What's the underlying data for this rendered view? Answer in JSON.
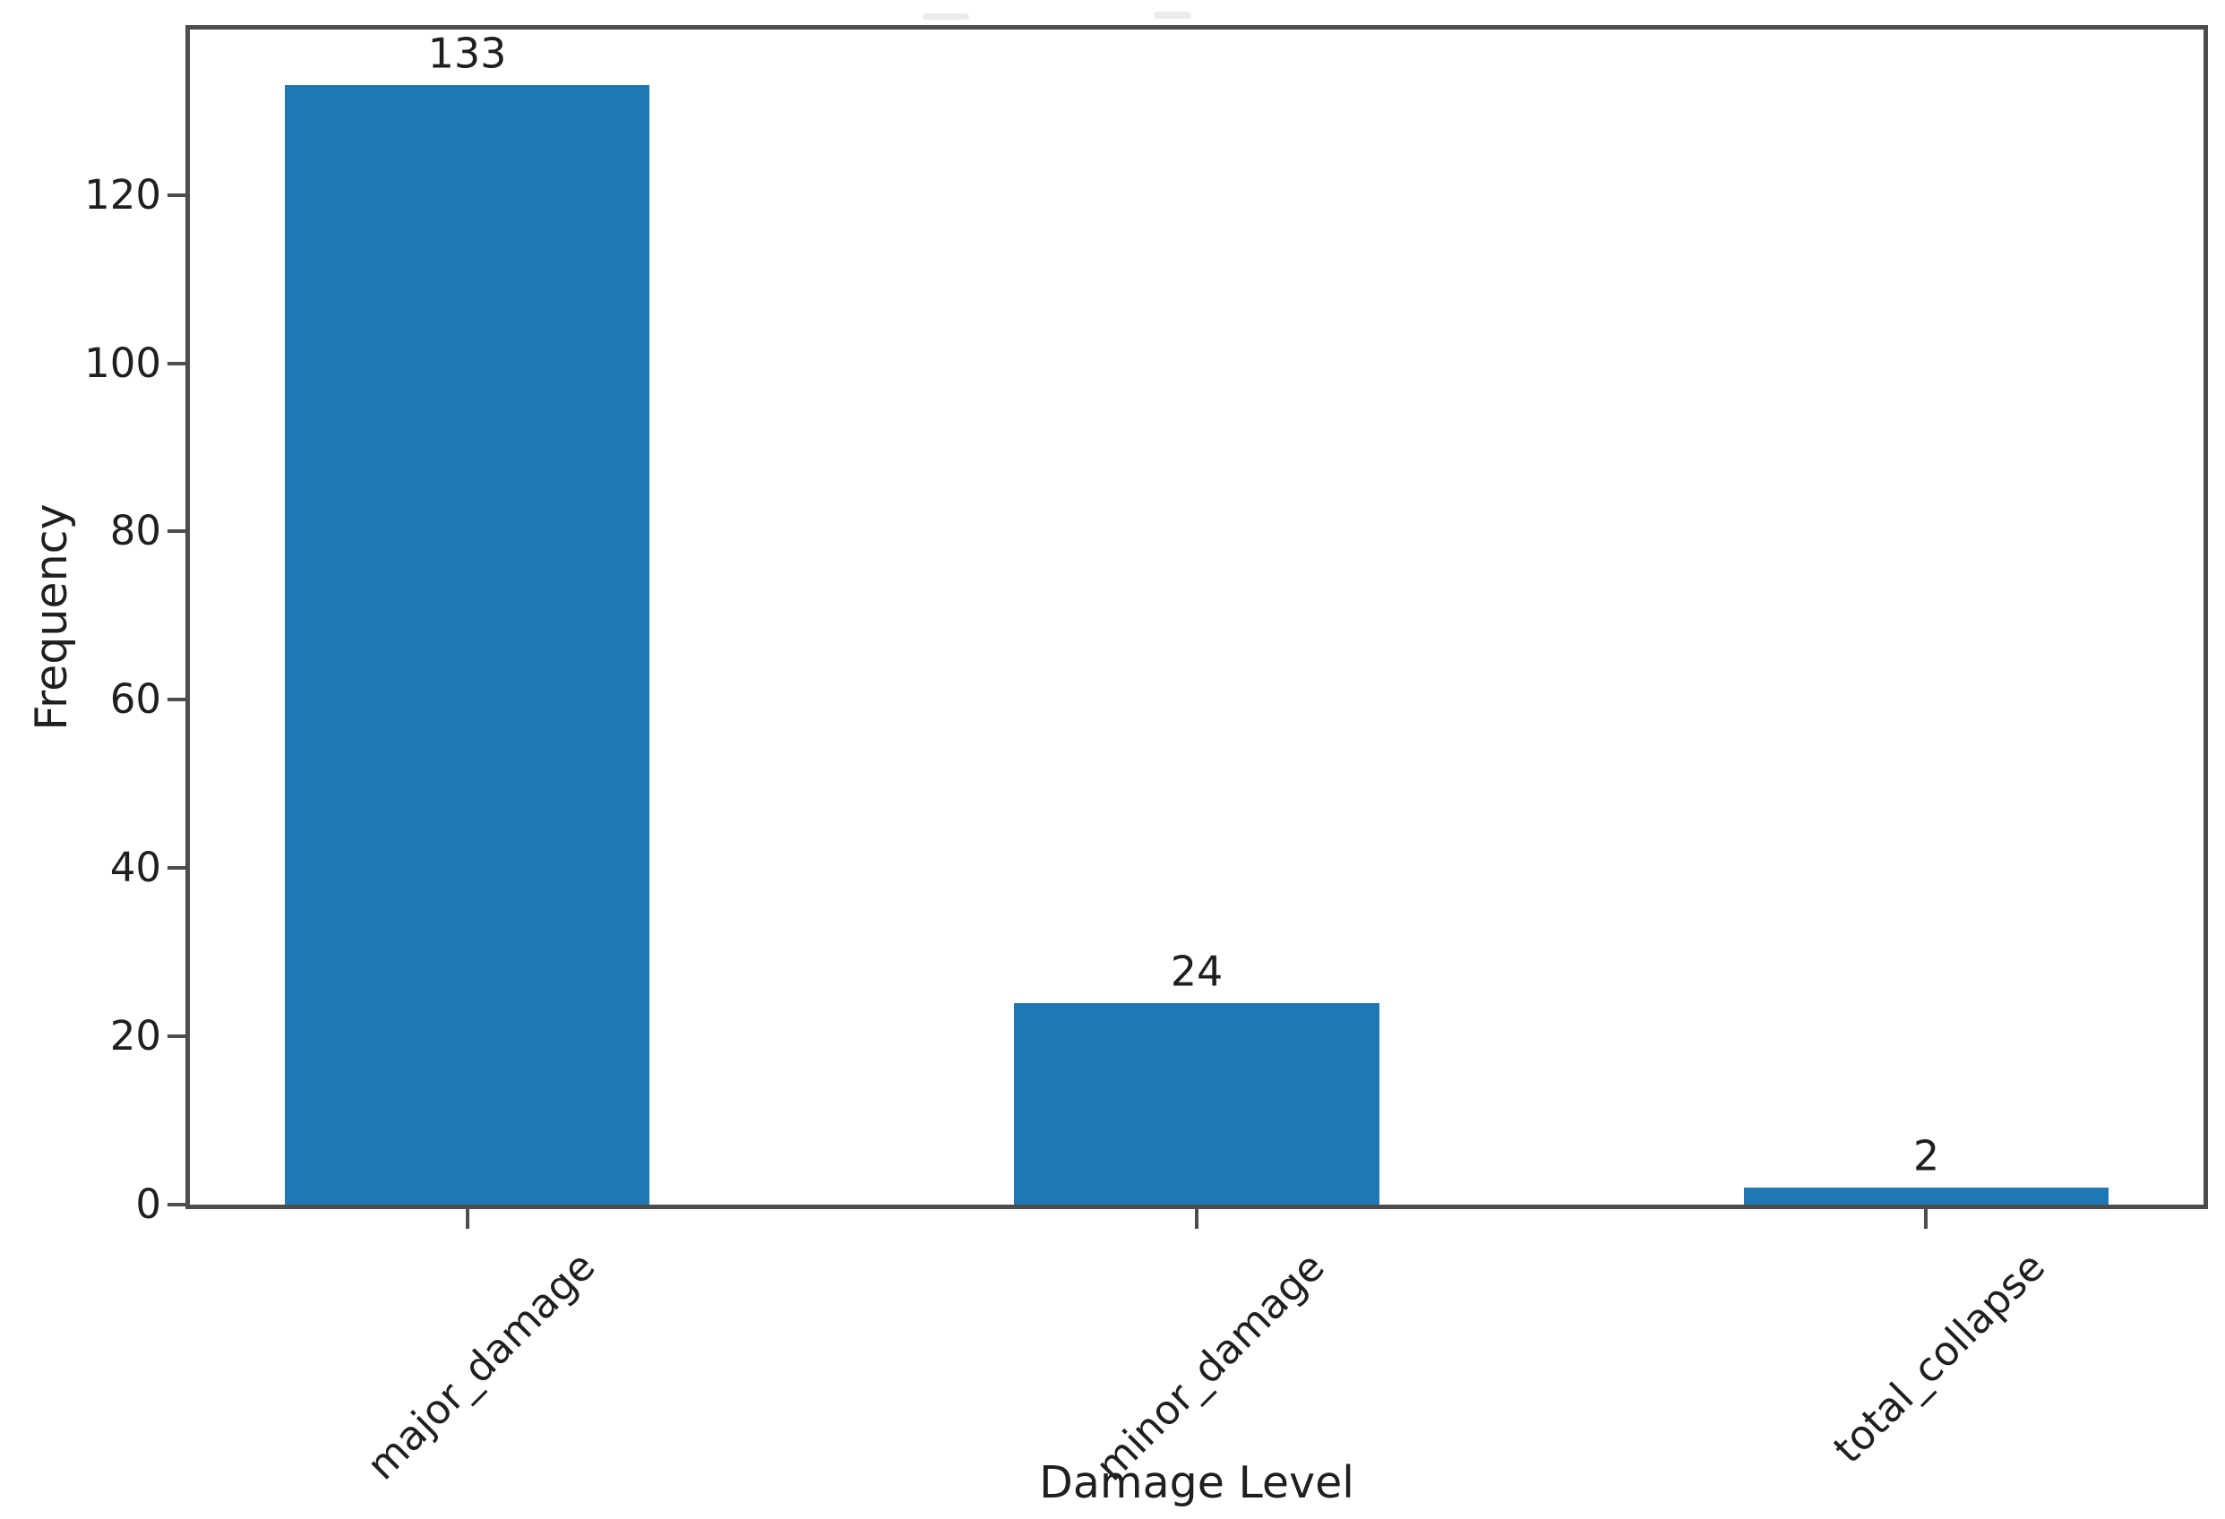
{
  "chart_data": {
    "type": "bar",
    "title": "",
    "xlabel": "Damage Level",
    "ylabel": "Frequency",
    "categories": [
      "major_damage",
      "minor_damage",
      "total_collapse"
    ],
    "values": [
      133,
      24,
      2
    ],
    "bar_value_labels": [
      "133",
      "24",
      "2"
    ],
    "ytick_labels": [
      "0",
      "20",
      "40",
      "60",
      "80",
      "100",
      "120"
    ],
    "yticks": [
      0,
      20,
      40,
      60,
      80,
      100,
      120
    ],
    "ylim": [
      0,
      139.65
    ],
    "xlim": [
      -0.38,
      2.38
    ],
    "bar_width": 0.5,
    "xtick_rotation_deg": 45,
    "grid": false,
    "legend": "none",
    "bar_color": "#1f77b4",
    "axis_color": "#4d4d4d",
    "text_color": "#1f1f1f",
    "background_color": "#ffffff"
  }
}
